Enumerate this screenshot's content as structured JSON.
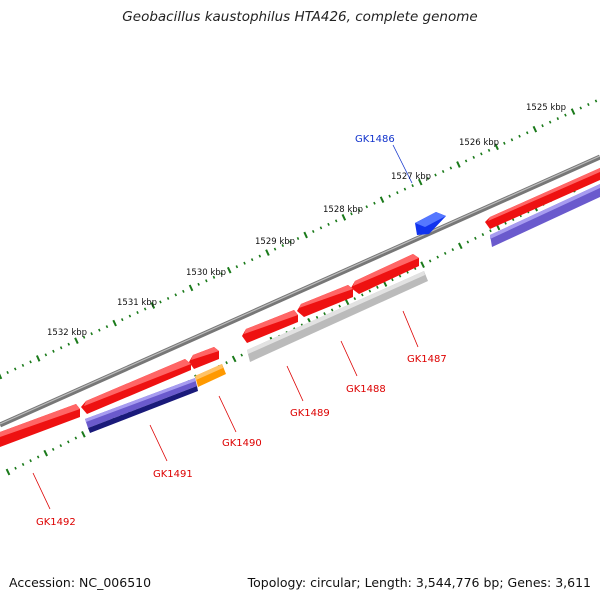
{
  "title": "Geobacillus kaustophilus HTA426, complete genome",
  "footer": {
    "accession": "Accession: NC_006510",
    "summary": "Topology: circular; Length: 3,544,776 bp; Genes: 3,611"
  },
  "colors": {
    "backbone": "#777777",
    "forward_gene": "#ee1111",
    "reverse_gene": "#ee1111",
    "highlight_gene": "#1133ee",
    "orange_gene": "#ff9900",
    "purple_feature": "#6a5acd",
    "navy_feature": "#1a1a7a",
    "grey_feature": "#bbbbbb",
    "tick": "#1a7a1a",
    "red_label": "#dd0000",
    "blue_label": "#1133cc"
  },
  "scale_labels": [
    "1525 kbp",
    "1526 kbp",
    "1527 kbp",
    "1528 kbp",
    "1529 kbp",
    "1530 kbp",
    "1531 kbp",
    "1532 kbp"
  ],
  "gene_labels": [
    {
      "name": "GK1486",
      "color": "blue"
    },
    {
      "name": "GK1487",
      "color": "red"
    },
    {
      "name": "GK1488",
      "color": "red"
    },
    {
      "name": "GK1489",
      "color": "red"
    },
    {
      "name": "GK1490",
      "color": "red"
    },
    {
      "name": "GK1491",
      "color": "red"
    },
    {
      "name": "GK1492",
      "color": "red"
    }
  ]
}
